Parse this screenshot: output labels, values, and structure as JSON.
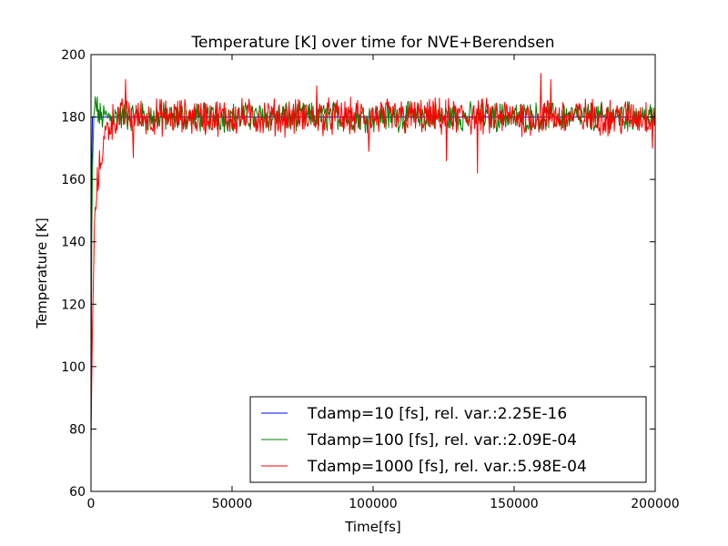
{
  "chart_data": {
    "type": "line",
    "title": "Temperature [K] over time for NVE+Berendsen",
    "xlabel": "Time[fs]",
    "ylabel": "Temperature [K]",
    "xlim": [
      0,
      200000
    ],
    "ylim": [
      60,
      200
    ],
    "xticks": [
      0,
      50000,
      100000,
      150000,
      200000
    ],
    "yticks": [
      60,
      80,
      100,
      120,
      140,
      160,
      180,
      200
    ],
    "xtick_labels": [
      "0",
      "50000",
      "100000",
      "150000",
      "200000"
    ],
    "ytick_labels": [
      "60",
      "80",
      "100",
      "120",
      "140",
      "160",
      "180",
      "200"
    ],
    "grid": false,
    "legend_position": "lower-right",
    "series": [
      {
        "name": "Tdamp=10 [fs], rel. var.:2.25E-16",
        "color": "#0000ff",
        "x": [
          0,
          300,
          1000,
          200000
        ],
        "y": [
          78,
          180,
          180,
          180
        ],
        "noise_amplitude": 0
      },
      {
        "name": "Tdamp=100 [fs], rel. var.:2.09E-04",
        "color": "#008000",
        "x": [
          0,
          300,
          800,
          1500,
          3000,
          200000
        ],
        "y": [
          78,
          150,
          175,
          185,
          180,
          180
        ],
        "noise_amplitude": 4
      },
      {
        "name": "Tdamp=1000 [fs], rel. var.:5.98E-04",
        "color": "#ff0000",
        "x": [
          0,
          500,
          1000,
          2000,
          3000,
          4000,
          5000,
          6000,
          8000,
          10000,
          200000
        ],
        "y": [
          76,
          110,
          137,
          157,
          163,
          170,
          174,
          177,
          179,
          180,
          180
        ],
        "noise_amplitude": 5,
        "spikes": [
          {
            "x": 12300,
            "y": 192
          },
          {
            "x": 15000,
            "y": 167
          },
          {
            "x": 80000,
            "y": 190
          },
          {
            "x": 98500,
            "y": 169
          },
          {
            "x": 126000,
            "y": 166
          },
          {
            "x": 137000,
            "y": 162
          },
          {
            "x": 159500,
            "y": 194
          },
          {
            "x": 163000,
            "y": 192
          },
          {
            "x": 199000,
            "y": 170
          }
        ]
      }
    ]
  }
}
